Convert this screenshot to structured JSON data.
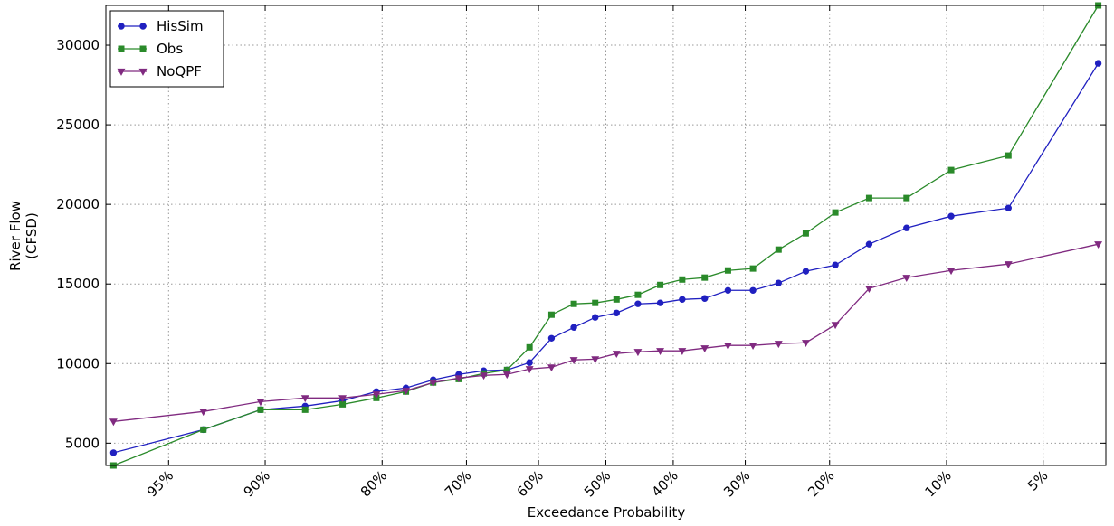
{
  "chart_data": {
    "type": "line",
    "xscale": "probability",
    "grid": true,
    "legend": "upper left",
    "xlabel": "Exceedance Probability",
    "ylabel": [
      "River Flow",
      "(CFSD)"
    ],
    "xlim": [
      97,
      3
    ],
    "ylim": [
      3600,
      32500
    ],
    "xticks": [
      {
        "value": 95,
        "label": "95%"
      },
      {
        "value": 90,
        "label": "90%"
      },
      {
        "value": 80,
        "label": "80%"
      },
      {
        "value": 70,
        "label": "70%"
      },
      {
        "value": 60,
        "label": "60%"
      },
      {
        "value": 50,
        "label": "50%"
      },
      {
        "value": 40,
        "label": "40%"
      },
      {
        "value": 30,
        "label": "30%"
      },
      {
        "value": 20,
        "label": "20%"
      },
      {
        "value": 10,
        "label": "10%"
      },
      {
        "value": 5,
        "label": "5%"
      }
    ],
    "yticks": [
      5000,
      10000,
      15000,
      20000,
      25000,
      30000
    ],
    "x": [
      96.8,
      93.5,
      90.3,
      87.1,
      83.9,
      80.6,
      77.4,
      74.2,
      71.0,
      67.7,
      64.5,
      61.3,
      58.1,
      54.8,
      51.6,
      48.4,
      45.2,
      41.9,
      38.7,
      35.5,
      32.3,
      29.0,
      25.8,
      22.6,
      19.4,
      16.1,
      12.9,
      9.7,
      6.5,
      3.2
    ],
    "series": [
      {
        "name": "HisSim",
        "color": "#2020c0",
        "marker": "circle",
        "values": [
          4400,
          5850,
          7100,
          7330,
          7670,
          8240,
          8470,
          8980,
          9320,
          9550,
          9600,
          10060,
          11590,
          12270,
          12900,
          13180,
          13750,
          13810,
          14030,
          14090,
          14600,
          14600,
          15060,
          15800,
          16190,
          17500,
          18520,
          19260,
          19770,
          28860
        ]
      },
      {
        "name": "Obs",
        "color": "#2a8a2a",
        "marker": "square",
        "values": [
          3600,
          5850,
          7100,
          7100,
          7440,
          7840,
          8240,
          8810,
          9030,
          9380,
          9600,
          11020,
          13070,
          13750,
          13810,
          14030,
          14320,
          14940,
          15280,
          15400,
          15850,
          15970,
          17160,
          18180,
          19490,
          20400,
          20400,
          22160,
          23070,
          32500
        ]
      },
      {
        "name": "NoQPF",
        "color": "#802a80",
        "marker": "triangle-down",
        "values": [
          6360,
          6990,
          7610,
          7840,
          7840,
          8070,
          8300,
          8810,
          9090,
          9260,
          9320,
          9660,
          9770,
          10230,
          10280,
          10630,
          10740,
          10800,
          10800,
          10970,
          11140,
          11140,
          11250,
          11310,
          12440,
          14720,
          15400,
          15850,
          16250,
          17500
        ]
      }
    ]
  }
}
